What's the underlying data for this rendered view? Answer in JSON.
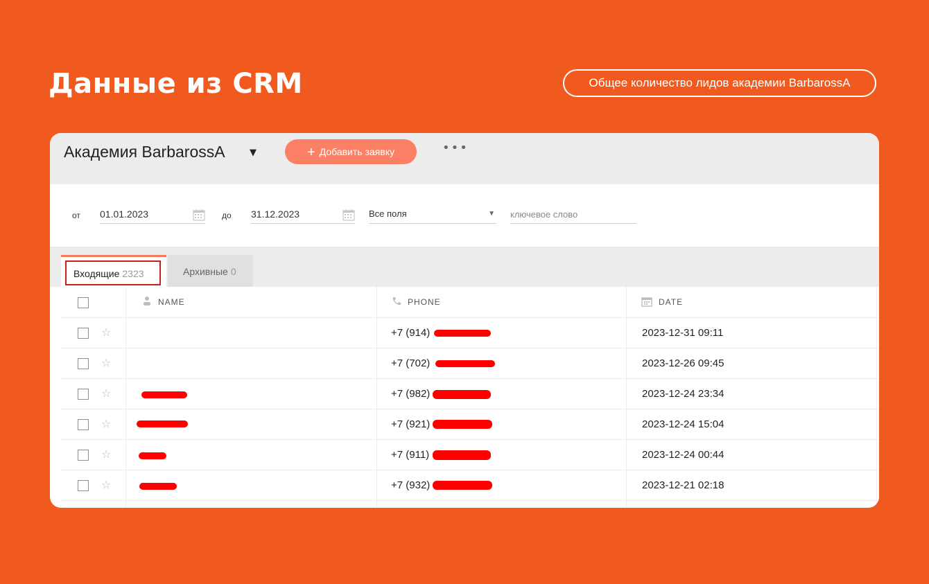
{
  "slide": {
    "title": "Данные из CRM",
    "badge": "Общее количество лидов академии BarbarossA"
  },
  "crm": {
    "org_name": "Академия BarbarossA",
    "add_button": "Добавить заявку",
    "more_label": "•••"
  },
  "filters": {
    "from_label": "от",
    "from_date": "01.01.2023",
    "to_label": "до",
    "to_date": "31.12.2023",
    "field_select": "Все поля",
    "keyword_placeholder": "ключевое слово"
  },
  "tabs": [
    {
      "label": "Входящие",
      "count": "2323",
      "active": true
    },
    {
      "label": "Архивные",
      "count": "0",
      "active": false
    }
  ],
  "table": {
    "columns": [
      "NAME",
      "PHONE",
      "DATE"
    ],
    "rows": [
      {
        "phone": "+7 (914)",
        "date": "2023-12-31 09:11",
        "name_redacted": false
      },
      {
        "phone": "+7 (702)",
        "date": "2023-12-26 09:45",
        "name_redacted": false
      },
      {
        "phone": "+7 (982)",
        "date": "2023-12-24 23:34",
        "name_redacted": true
      },
      {
        "phone": "+7 (921)",
        "date": "2023-12-24 15:04",
        "name_redacted": true
      },
      {
        "phone": "+7 (911)",
        "date": "2023-12-24 00:44",
        "name_redacted": true
      },
      {
        "phone": "+7 (932)",
        "date": "2023-12-21 02:18",
        "name_redacted": true
      }
    ]
  },
  "colors": {
    "background": "#f15a1f",
    "accent_button": "#fb8066",
    "redaction": "#ff0000",
    "highlight_box": "#c81d1d"
  }
}
